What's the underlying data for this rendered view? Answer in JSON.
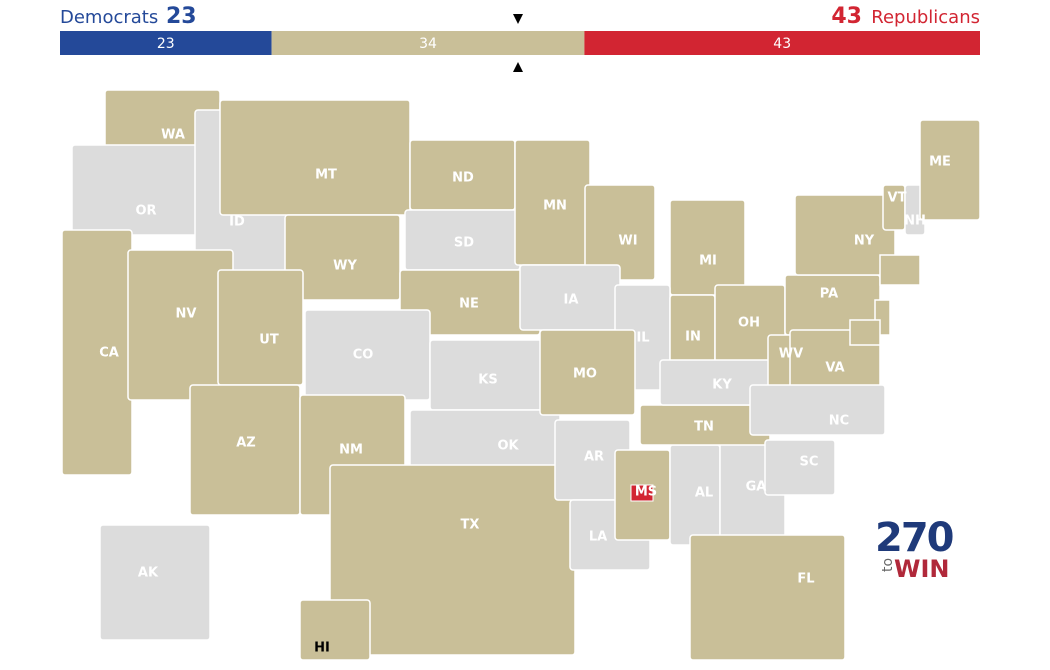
{
  "header": {
    "left": {
      "name": "Democrats",
      "seats": 23
    },
    "right": {
      "seats": 43,
      "name": "Republicans"
    }
  },
  "balance_bar": {
    "segments": [
      {
        "value": 23,
        "color": "#244999"
      },
      {
        "value": 34,
        "color": "#c9bf98"
      },
      {
        "value": 43,
        "color": "#d22532"
      }
    ]
  },
  "map": {
    "colors": {
      "contested": "#c9bf98",
      "none": "#dcdcdc"
    },
    "states": [
      {
        "label": "WA",
        "status": "contested"
      },
      {
        "label": "OR",
        "status": "none"
      },
      {
        "label": "ID",
        "status": "none"
      },
      {
        "label": "MT",
        "status": "contested"
      },
      {
        "label": "WY",
        "status": "contested"
      },
      {
        "label": "ND",
        "status": "contested"
      },
      {
        "label": "SD",
        "status": "none"
      },
      {
        "label": "NE",
        "status": "contested"
      },
      {
        "label": "MN",
        "status": "contested"
      },
      {
        "label": "WI",
        "status": "contested"
      },
      {
        "label": "MI",
        "status": "contested"
      },
      {
        "label": "IA",
        "status": "none"
      },
      {
        "label": "IL",
        "status": "none"
      },
      {
        "label": "IN",
        "status": "contested"
      },
      {
        "label": "OH",
        "status": "contested"
      },
      {
        "label": "PA",
        "status": "contested"
      },
      {
        "label": "NY",
        "status": "contested"
      },
      {
        "label": "CA",
        "status": "contested"
      },
      {
        "label": "NV",
        "status": "contested"
      },
      {
        "label": "UT",
        "status": "contested"
      },
      {
        "label": "AZ",
        "status": "contested"
      },
      {
        "label": "CO",
        "status": "none"
      },
      {
        "label": "NM",
        "status": "contested"
      },
      {
        "label": "KS",
        "status": "none"
      },
      {
        "label": "OK",
        "status": "none"
      },
      {
        "label": "TX",
        "status": "contested"
      },
      {
        "label": "MO",
        "status": "contested"
      },
      {
        "label": "AR",
        "status": "none"
      },
      {
        "label": "LA",
        "status": "none"
      },
      {
        "label": "MS",
        "status": "contested"
      },
      {
        "label": "AL",
        "status": "none"
      },
      {
        "label": "GA",
        "status": "none"
      },
      {
        "label": "FL",
        "status": "contested"
      },
      {
        "label": "TN",
        "status": "contested"
      },
      {
        "label": "KY",
        "status": "none"
      },
      {
        "label": "WV",
        "status": "contested"
      },
      {
        "label": "VA",
        "status": "contested"
      },
      {
        "label": "NC",
        "status": "none"
      },
      {
        "label": "SC",
        "status": "none"
      },
      {
        "label": "AK",
        "status": "none"
      },
      {
        "label": "HI",
        "status": "contested"
      },
      {
        "label": "VT",
        "status": "contested"
      },
      {
        "label": "NH",
        "status": "none"
      },
      {
        "label": "ME",
        "status": "contested"
      }
    ]
  },
  "logo": {
    "number": "270",
    "to": "to",
    "win": "WIN"
  }
}
